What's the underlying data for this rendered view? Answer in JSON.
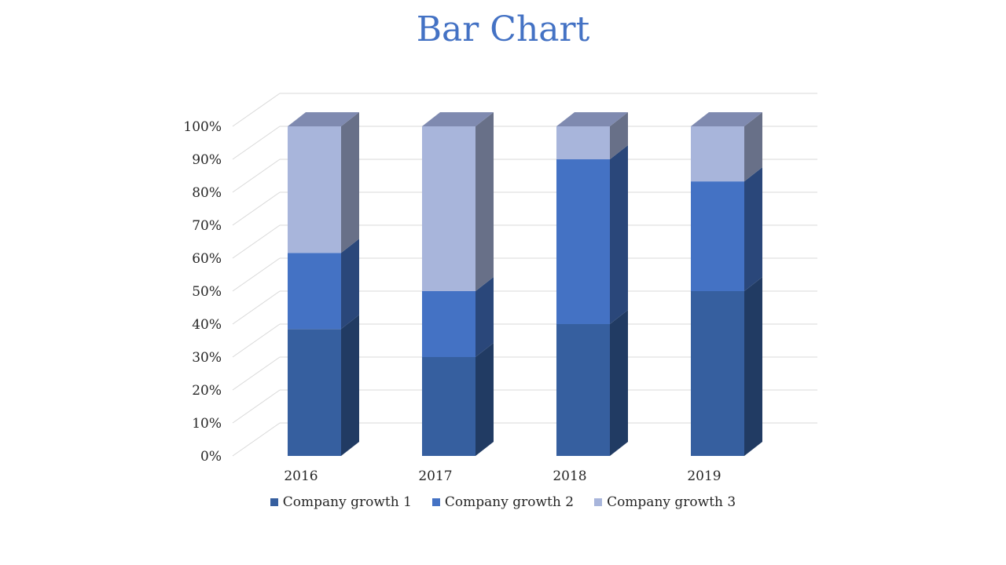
{
  "chart_data": {
    "type": "bar",
    "stacked": true,
    "three_d": true,
    "title": "Bar Chart",
    "categories": [
      "2016",
      "2017",
      "2018",
      "2019"
    ],
    "series": [
      {
        "name": "Company growth 1",
        "color": "#365f9f",
        "values": [
          38.5,
          30,
          40,
          50
        ]
      },
      {
        "name": "Company growth 2",
        "color": "#4472c4",
        "values": [
          23.1,
          20,
          50,
          33.3
        ]
      },
      {
        "name": "Company growth 3",
        "color": "#a8b5db",
        "values": [
          38.4,
          50,
          10,
          16.7
        ]
      }
    ],
    "ylim": [
      0,
      100
    ],
    "yticks": [
      "0%",
      "10%",
      "20%",
      "30%",
      "40%",
      "50%",
      "60%",
      "70%",
      "80%",
      "90%",
      "100%"
    ],
    "grid": true,
    "legend_position": "bottom"
  }
}
